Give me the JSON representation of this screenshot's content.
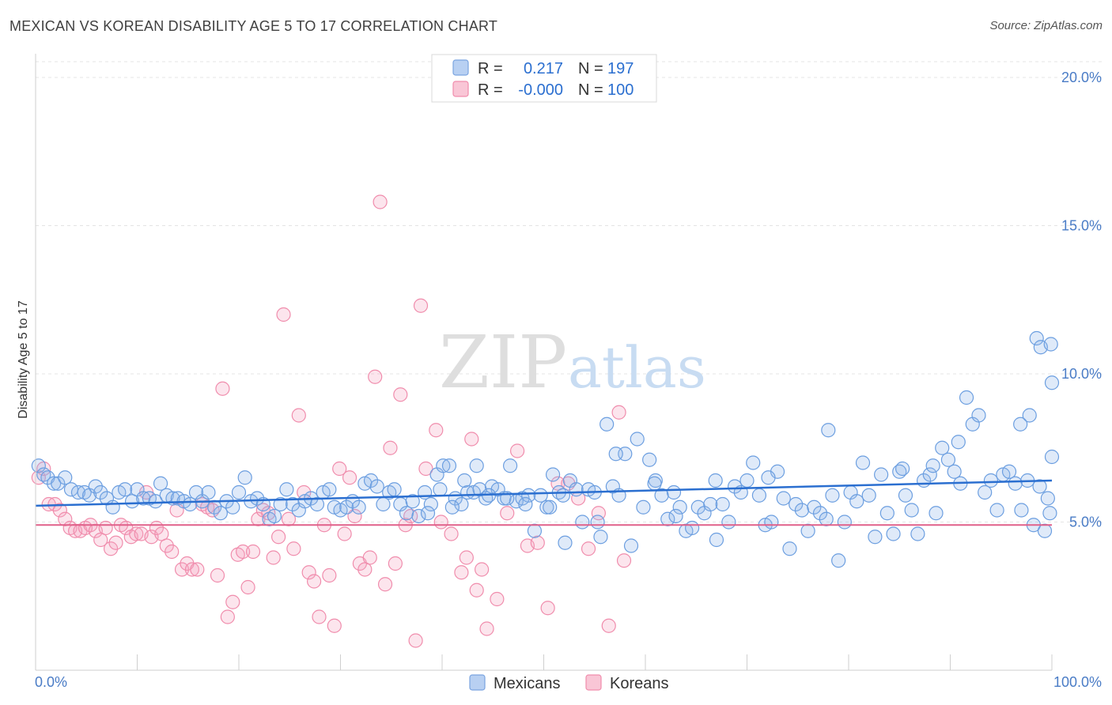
{
  "title": "MEXICAN VS KOREAN DISABILITY AGE 5 TO 17 CORRELATION CHART",
  "source": "Source: ZipAtlas.com",
  "watermark": {
    "zip": "ZIP",
    "atlas": "atlas"
  },
  "chart_data": {
    "type": "scatter",
    "xlabel": "",
    "ylabel": "Disability Age 5 to 17",
    "xlim": [
      0,
      100
    ],
    "ylim": [
      0,
      20.8
    ],
    "x_tick_labels": [
      "0.0%",
      "100.0%"
    ],
    "y_ticks": [
      5,
      10,
      15,
      20
    ],
    "y_tick_labels": [
      "5.0%",
      "10.0%",
      "15.0%",
      "20.0%"
    ],
    "grid": true,
    "legend_position": "top-center",
    "colors": {
      "mexicans": "#6b9ee0",
      "koreans": "#f08cac",
      "mexicans_line": "#2b6fd0",
      "koreans_line": "#e0608a",
      "tick_text": "#4a7cc6"
    },
    "stats_box": [
      {
        "r_label": "R =",
        "r_value": "0.217",
        "n_label": "N =",
        "n_value": "197"
      },
      {
        "r_label": "R =",
        "r_value": "-0.000",
        "n_label": "N =",
        "n_value": "100"
      }
    ],
    "bottom_legend": [
      "Mexicans",
      "Koreans"
    ],
    "series": [
      {
        "name": "Mexicans",
        "trend": {
          "x": [
            0,
            100
          ],
          "y": [
            5.55,
            6.4
          ]
        },
        "points": [
          [
            0.3,
            6.9
          ],
          [
            0.8,
            6.6
          ],
          [
            1.2,
            6.5
          ],
          [
            1.8,
            6.3
          ],
          [
            2.2,
            6.3
          ],
          [
            2.9,
            6.5
          ],
          [
            3.5,
            6.1
          ],
          [
            4.2,
            6.0
          ],
          [
            4.8,
            6.0
          ],
          [
            5.3,
            5.9
          ],
          [
            5.9,
            6.2
          ],
          [
            6.4,
            6.0
          ],
          [
            7.0,
            5.8
          ],
          [
            7.6,
            5.5
          ],
          [
            8.2,
            6.0
          ],
          [
            8.8,
            6.1
          ],
          [
            9.5,
            5.7
          ],
          [
            10.0,
            6.1
          ],
          [
            10.6,
            5.8
          ],
          [
            11.2,
            5.8
          ],
          [
            11.8,
            5.7
          ],
          [
            12.3,
            6.3
          ],
          [
            12.9,
            5.9
          ],
          [
            13.5,
            5.8
          ],
          [
            14.0,
            5.8
          ],
          [
            14.6,
            5.7
          ],
          [
            15.2,
            5.6
          ],
          [
            15.8,
            6.0
          ],
          [
            16.4,
            5.7
          ],
          [
            17.0,
            6.0
          ],
          [
            17.6,
            5.5
          ],
          [
            18.2,
            5.3
          ],
          [
            18.8,
            5.7
          ],
          [
            19.4,
            5.5
          ],
          [
            20.0,
            6.0
          ],
          [
            20.6,
            6.5
          ],
          [
            21.2,
            5.7
          ],
          [
            21.8,
            5.8
          ],
          [
            22.4,
            5.6
          ],
          [
            23.0,
            5.1
          ],
          [
            23.5,
            5.2
          ],
          [
            24.1,
            5.6
          ],
          [
            24.7,
            6.1
          ],
          [
            25.3,
            5.6
          ],
          [
            25.9,
            5.4
          ],
          [
            26.5,
            5.7
          ],
          [
            27.1,
            5.8
          ],
          [
            27.7,
            5.6
          ],
          [
            28.3,
            6.0
          ],
          [
            28.9,
            6.1
          ],
          [
            29.4,
            5.5
          ],
          [
            30.0,
            5.4
          ],
          [
            30.6,
            5.5
          ],
          [
            31.2,
            5.7
          ],
          [
            31.8,
            5.5
          ],
          [
            32.4,
            6.3
          ],
          [
            33.0,
            6.4
          ],
          [
            33.6,
            6.2
          ],
          [
            34.2,
            5.6
          ],
          [
            34.8,
            6.0
          ],
          [
            35.3,
            6.1
          ],
          [
            35.9,
            5.6
          ],
          [
            36.5,
            5.3
          ],
          [
            37.1,
            5.7
          ],
          [
            37.7,
            5.2
          ],
          [
            38.3,
            6.0
          ],
          [
            38.9,
            5.6
          ],
          [
            39.5,
            6.6
          ],
          [
            40.1,
            6.9
          ],
          [
            40.7,
            6.9
          ],
          [
            41.3,
            5.8
          ],
          [
            41.9,
            5.6
          ],
          [
            42.5,
            6.0
          ],
          [
            43.1,
            6.0
          ],
          [
            43.7,
            6.1
          ],
          [
            44.3,
            5.8
          ],
          [
            44.9,
            6.2
          ],
          [
            45.5,
            6.1
          ],
          [
            46.1,
            5.8
          ],
          [
            46.7,
            6.9
          ],
          [
            47.3,
            5.7
          ],
          [
            47.9,
            5.8
          ],
          [
            48.5,
            5.9
          ],
          [
            49.1,
            4.7
          ],
          [
            49.7,
            5.9
          ],
          [
            50.3,
            5.5
          ],
          [
            50.9,
            6.6
          ],
          [
            51.5,
            6.0
          ],
          [
            52.1,
            4.3
          ],
          [
            52.6,
            6.4
          ],
          [
            53.2,
            6.1
          ],
          [
            53.8,
            5.0
          ],
          [
            54.4,
            6.1
          ],
          [
            55.0,
            6.0
          ],
          [
            55.6,
            4.5
          ],
          [
            56.2,
            8.3
          ],
          [
            56.8,
            6.2
          ],
          [
            57.4,
            5.9
          ],
          [
            58.0,
            7.3
          ],
          [
            58.6,
            4.2
          ],
          [
            59.2,
            7.8
          ],
          [
            59.8,
            5.5
          ],
          [
            60.4,
            7.1
          ],
          [
            61.0,
            6.4
          ],
          [
            61.6,
            5.9
          ],
          [
            62.2,
            5.1
          ],
          [
            62.8,
            6.0
          ],
          [
            63.4,
            5.5
          ],
          [
            64.0,
            4.7
          ],
          [
            64.6,
            4.8
          ],
          [
            65.2,
            5.5
          ],
          [
            65.8,
            5.3
          ],
          [
            66.4,
            5.6
          ],
          [
            67.0,
            4.4
          ],
          [
            67.6,
            5.6
          ],
          [
            68.2,
            5.0
          ],
          [
            68.8,
            6.2
          ],
          [
            69.4,
            6.0
          ],
          [
            70.0,
            6.4
          ],
          [
            70.6,
            7.0
          ],
          [
            71.2,
            5.9
          ],
          [
            71.8,
            4.9
          ],
          [
            72.4,
            5.0
          ],
          [
            73.0,
            6.7
          ],
          [
            73.6,
            5.8
          ],
          [
            74.2,
            4.1
          ],
          [
            74.8,
            5.6
          ],
          [
            75.4,
            5.4
          ],
          [
            76.0,
            4.7
          ],
          [
            76.6,
            5.5
          ],
          [
            77.2,
            5.3
          ],
          [
            77.8,
            5.1
          ],
          [
            78.4,
            5.9
          ],
          [
            79.0,
            3.7
          ],
          [
            79.6,
            5.0
          ],
          [
            80.2,
            6.0
          ],
          [
            80.8,
            5.7
          ],
          [
            81.4,
            7.0
          ],
          [
            82.0,
            5.9
          ],
          [
            82.6,
            4.5
          ],
          [
            83.2,
            6.6
          ],
          [
            83.8,
            5.3
          ],
          [
            84.4,
            4.6
          ],
          [
            85.0,
            6.7
          ],
          [
            85.6,
            5.9
          ],
          [
            86.2,
            5.4
          ],
          [
            86.8,
            4.6
          ],
          [
            87.4,
            6.4
          ],
          [
            88.0,
            6.6
          ],
          [
            88.6,
            5.3
          ],
          [
            89.2,
            7.5
          ],
          [
            89.8,
            7.1
          ],
          [
            90.4,
            6.7
          ],
          [
            91.0,
            6.3
          ],
          [
            91.6,
            9.2
          ],
          [
            92.2,
            8.3
          ],
          [
            92.8,
            8.6
          ],
          [
            93.4,
            6.0
          ],
          [
            94.0,
            6.4
          ],
          [
            94.6,
            5.4
          ],
          [
            95.2,
            6.6
          ],
          [
            95.8,
            6.7
          ],
          [
            96.4,
            6.3
          ],
          [
            97.0,
            5.4
          ],
          [
            97.6,
            6.4
          ],
          [
            98.2,
            4.9
          ],
          [
            98.8,
            6.2
          ],
          [
            99.3,
            4.7
          ],
          [
            99.6,
            5.8
          ],
          [
            99.8,
            5.3
          ],
          [
            100.0,
            7.2
          ],
          [
            100.0,
            9.7
          ],
          [
            98.5,
            11.2
          ],
          [
            98.9,
            10.9
          ],
          [
            99.9,
            11.0
          ],
          [
            97.8,
            8.6
          ],
          [
            96.9,
            8.3
          ],
          [
            85.3,
            6.8
          ],
          [
            90.8,
            7.7
          ],
          [
            88.3,
            6.9
          ],
          [
            78.0,
            8.1
          ],
          [
            72.1,
            6.5
          ],
          [
            66.9,
            6.4
          ],
          [
            63.0,
            5.2
          ],
          [
            60.9,
            6.3
          ],
          [
            57.1,
            7.3
          ],
          [
            55.3,
            5.0
          ],
          [
            51.9,
            5.9
          ],
          [
            50.6,
            5.5
          ],
          [
            48.2,
            5.6
          ],
          [
            46.4,
            5.8
          ],
          [
            44.6,
            5.9
          ],
          [
            43.4,
            6.9
          ],
          [
            42.2,
            6.4
          ],
          [
            41.0,
            5.5
          ],
          [
            39.8,
            6.1
          ],
          [
            38.6,
            5.3
          ]
        ]
      },
      {
        "name": "Koreans",
        "trend": {
          "x": [
            0,
            100
          ],
          "y": [
            4.9,
            4.9
          ]
        },
        "points": [
          [
            0.3,
            6.5
          ],
          [
            0.8,
            6.8
          ],
          [
            1.3,
            5.6
          ],
          [
            1.9,
            5.6
          ],
          [
            2.4,
            5.4
          ],
          [
            2.9,
            5.1
          ],
          [
            3.4,
            4.8
          ],
          [
            3.9,
            4.7
          ],
          [
            4.4,
            4.7
          ],
          [
            4.9,
            4.8
          ],
          [
            5.4,
            4.9
          ],
          [
            5.9,
            4.7
          ],
          [
            6.4,
            4.4
          ],
          [
            6.9,
            4.8
          ],
          [
            7.4,
            4.1
          ],
          [
            7.9,
            4.3
          ],
          [
            8.4,
            4.9
          ],
          [
            8.9,
            4.8
          ],
          [
            9.4,
            4.5
          ],
          [
            9.9,
            4.6
          ],
          [
            10.4,
            4.6
          ],
          [
            10.9,
            6.0
          ],
          [
            11.4,
            4.5
          ],
          [
            11.9,
            4.8
          ],
          [
            12.4,
            4.6
          ],
          [
            12.9,
            4.2
          ],
          [
            13.4,
            4.0
          ],
          [
            13.9,
            5.4
          ],
          [
            14.4,
            3.4
          ],
          [
            14.9,
            3.6
          ],
          [
            15.4,
            3.4
          ],
          [
            15.9,
            3.4
          ],
          [
            16.4,
            5.6
          ],
          [
            16.9,
            5.5
          ],
          [
            17.4,
            5.4
          ],
          [
            17.9,
            3.2
          ],
          [
            18.4,
            9.5
          ],
          [
            18.9,
            1.8
          ],
          [
            19.4,
            2.3
          ],
          [
            19.9,
            3.9
          ],
          [
            20.4,
            4.0
          ],
          [
            20.9,
            2.8
          ],
          [
            21.4,
            4.0
          ],
          [
            21.9,
            5.1
          ],
          [
            22.4,
            5.4
          ],
          [
            22.9,
            5.3
          ],
          [
            23.4,
            3.8
          ],
          [
            23.9,
            4.5
          ],
          [
            24.4,
            12.0
          ],
          [
            24.9,
            5.1
          ],
          [
            25.4,
            4.1
          ],
          [
            25.9,
            8.6
          ],
          [
            26.4,
            6.0
          ],
          [
            26.9,
            3.3
          ],
          [
            27.4,
            3.0
          ],
          [
            27.9,
            1.8
          ],
          [
            28.4,
            4.9
          ],
          [
            28.9,
            3.2
          ],
          [
            29.4,
            1.5
          ],
          [
            29.9,
            6.8
          ],
          [
            30.4,
            4.6
          ],
          [
            30.9,
            6.5
          ],
          [
            31.4,
            5.2
          ],
          [
            31.9,
            3.6
          ],
          [
            32.4,
            3.4
          ],
          [
            32.9,
            3.8
          ],
          [
            33.4,
            9.9
          ],
          [
            33.9,
            15.8
          ],
          [
            34.4,
            2.9
          ],
          [
            34.9,
            7.5
          ],
          [
            35.4,
            3.6
          ],
          [
            35.9,
            9.3
          ],
          [
            36.4,
            4.9
          ],
          [
            36.9,
            5.2
          ],
          [
            37.4,
            1.0
          ],
          [
            37.9,
            12.3
          ],
          [
            38.4,
            6.8
          ],
          [
            39.4,
            8.1
          ],
          [
            39.9,
            5.0
          ],
          [
            40.9,
            4.6
          ],
          [
            41.9,
            3.3
          ],
          [
            42.4,
            3.8
          ],
          [
            42.9,
            7.8
          ],
          [
            43.4,
            2.7
          ],
          [
            43.9,
            3.4
          ],
          [
            44.4,
            1.4
          ],
          [
            45.4,
            2.4
          ],
          [
            46.4,
            5.3
          ],
          [
            47.4,
            7.4
          ],
          [
            48.4,
            4.2
          ],
          [
            49.4,
            4.3
          ],
          [
            50.4,
            2.1
          ],
          [
            51.4,
            6.3
          ],
          [
            52.4,
            6.3
          ],
          [
            53.4,
            5.8
          ],
          [
            54.4,
            4.1
          ],
          [
            55.4,
            5.3
          ],
          [
            56.4,
            1.5
          ],
          [
            57.4,
            8.7
          ],
          [
            57.9,
            3.7
          ]
        ]
      }
    ]
  }
}
